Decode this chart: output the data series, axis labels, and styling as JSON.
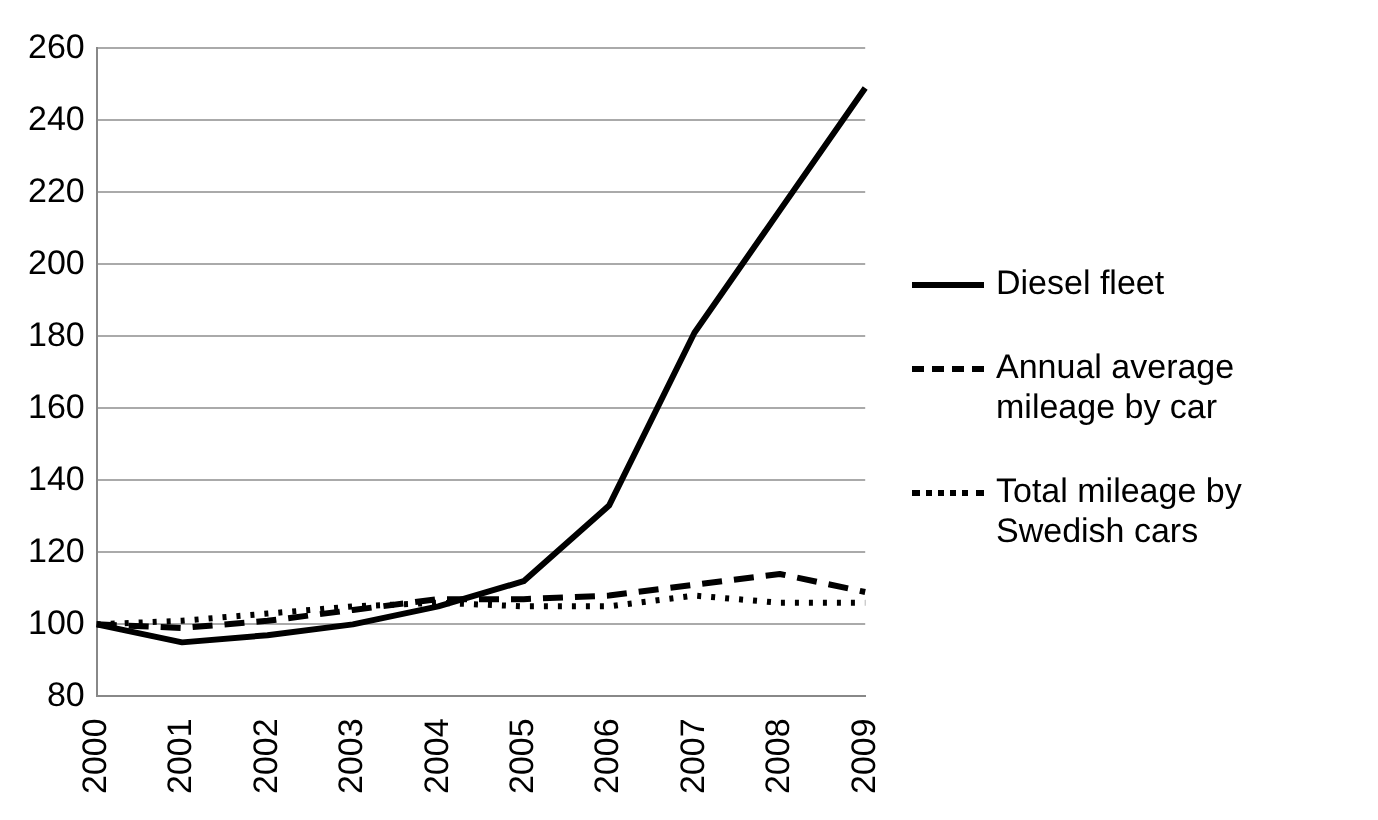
{
  "chart_data": {
    "type": "line",
    "categories": [
      "2000",
      "2001",
      "2002",
      "2003",
      "2004",
      "2005",
      "2006",
      "2007",
      "2008",
      "2009"
    ],
    "series": [
      {
        "name": "Diesel fleet",
        "color": "#000000",
        "line_style": "solid",
        "values": [
          100,
          95,
          97,
          100,
          105,
          112,
          133,
          181,
          215,
          249
        ]
      },
      {
        "name": "Annual average mileage by car",
        "color": "#000000",
        "line_style": "dashed",
        "values": [
          100,
          99,
          101,
          104,
          107,
          107,
          108,
          111,
          114,
          109
        ]
      },
      {
        "name": "Total mileage by Swedish cars",
        "color": "#000000",
        "line_style": "dotted",
        "values": [
          100,
          101,
          103,
          105,
          106,
          105,
          105,
          108,
          106,
          106
        ]
      }
    ],
    "ylim": [
      80,
      260
    ],
    "yticks": [
      80,
      100,
      120,
      140,
      160,
      180,
      200,
      220,
      240,
      260
    ],
    "grid": "y",
    "legend": "right",
    "marker": "none"
  }
}
